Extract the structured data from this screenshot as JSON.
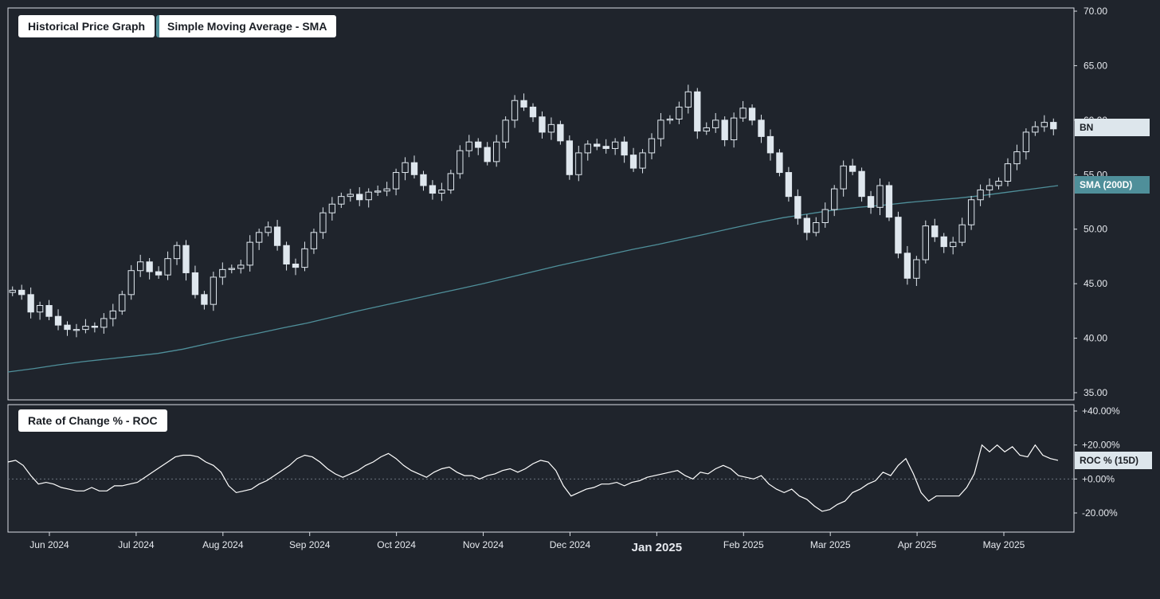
{
  "legend": {
    "price_title": "Historical Price Graph",
    "sma_title": "Simple Moving Average - SMA",
    "roc_title": "Rate of Change % - ROC"
  },
  "tags": {
    "ticker": "BN",
    "sma": "SMA (200D)",
    "roc": "ROC % (15D)"
  },
  "colors": {
    "background": "#1f242c",
    "panel_border": "#d8dde3",
    "candle": "#dfe7ee",
    "sma_line": "#4f8f9a",
    "roc_line": "#ffffff",
    "tag_bg": "#dde6ec",
    "sma_tag_bg": "#4f8f9a"
  },
  "chart_data": [
    {
      "type": "candlestick",
      "y_ticks": [
        "70.00",
        "65.00",
        "60.00",
        "55.00",
        "50.00",
        "45.00",
        "40.00",
        "35.00"
      ],
      "ylim": [
        35,
        70
      ],
      "x_ticks": [
        "Jun 2024",
        "Jul 2024",
        "Aug 2024",
        "Sep 2024",
        "Oct 2024",
        "Nov 2024",
        "Dec 2024",
        "Jan 2025",
        "Feb 2025",
        "Mar 2025",
        "Apr 2025",
        "May 2025"
      ],
      "xlim": [
        0,
        13
      ],
      "x_tick_values": [
        1,
        2,
        3,
        4,
        5,
        6,
        7,
        8,
        9,
        10,
        11,
        12
      ],
      "series": [
        {
          "name": "BN",
          "closes": [
            44.4,
            44.0,
            42.4,
            43.0,
            42.0,
            41.2,
            40.8,
            40.8,
            41.1,
            41.0,
            41.8,
            42.5,
            44.0,
            46.2,
            47.0,
            46.1,
            45.8,
            47.3,
            48.5,
            46.0,
            44.0,
            43.1,
            45.6,
            46.3,
            46.4,
            46.7,
            48.8,
            49.7,
            50.2,
            48.5,
            46.8,
            46.5,
            48.2,
            49.7,
            51.5,
            52.3,
            53.0,
            53.2,
            52.7,
            53.4,
            53.5,
            53.7,
            55.2,
            56.1,
            55.0,
            54.0,
            53.3,
            53.6,
            55.1,
            57.2,
            58.0,
            57.5,
            56.2,
            58.0,
            60.0,
            61.8,
            61.2,
            60.3,
            58.9,
            59.6,
            58.1,
            55.0,
            57.0,
            57.8,
            57.6,
            57.4,
            58.0,
            56.8,
            55.6,
            57.0,
            58.3,
            60.0,
            60.1,
            61.2,
            62.6,
            59.0,
            59.3,
            60.0,
            58.2,
            60.2,
            61.1,
            60.0,
            58.5,
            57.0,
            55.2,
            53.0,
            51.0,
            49.7,
            50.6,
            51.8,
            53.7,
            55.8,
            55.3,
            53.0,
            52.0,
            54.0,
            51.1,
            47.8,
            45.5,
            47.2,
            50.3,
            49.3,
            48.4,
            48.8,
            50.4,
            52.7,
            53.6,
            54.0,
            54.4,
            56.0,
            57.1,
            58.9,
            59.4,
            59.8,
            59.2
          ],
          "sma_200d": [
            36.9,
            37.2,
            37.55,
            37.85,
            38.1,
            38.35,
            38.6,
            39.0,
            39.5,
            40.0,
            40.45,
            40.95,
            41.4,
            41.95,
            42.5,
            43.0,
            43.5,
            44.0,
            44.5,
            45.0,
            45.55,
            46.1,
            46.65,
            47.15,
            47.65,
            48.15,
            48.6,
            49.1,
            49.6,
            50.1,
            50.6,
            51.05,
            51.4,
            51.75,
            52.0,
            52.2,
            52.45,
            52.65,
            52.85,
            53.1,
            53.4,
            53.7,
            54.0
          ],
          "sma_x_range": [
            0,
            13
          ]
        }
      ]
    },
    {
      "type": "line",
      "y_ticks": [
        "+40.00%",
        "+20.00%",
        "+0.00%",
        "-20.00%"
      ],
      "ylim": [
        -30,
        40
      ],
      "series": [
        {
          "name": "ROC % (15D)",
          "values": [
            10,
            11,
            8,
            2,
            -3,
            -2,
            -3,
            -5,
            -6,
            -7,
            -7,
            -5,
            -7,
            -7,
            -4,
            -4,
            -3,
            -2,
            1,
            4,
            7,
            10,
            13,
            14,
            14,
            13,
            10,
            8,
            4,
            -4,
            -8,
            -7,
            -6,
            -3,
            -1,
            2,
            5,
            8,
            12,
            14,
            13,
            10,
            6,
            3,
            1,
            3,
            5,
            8,
            10,
            13,
            15,
            12,
            8,
            5,
            3,
            1,
            4,
            6,
            7,
            4,
            2,
            2,
            0,
            2,
            3,
            5,
            6,
            4,
            6,
            9,
            11,
            10,
            5,
            -4,
            -10,
            -8,
            -6,
            -5,
            -3,
            -3,
            -2,
            -4,
            -2,
            -1,
            1,
            2,
            3,
            4,
            5,
            2,
            0,
            4,
            3,
            6,
            8,
            6,
            2,
            1,
            0,
            2,
            -3,
            -6,
            -8,
            -6,
            -10,
            -12,
            -16,
            -19,
            -18,
            -15,
            -13,
            -8,
            -6,
            -3,
            -1,
            4,
            2,
            8,
            12,
            3,
            -8,
            -13,
            -10,
            -10,
            -10,
            -10,
            -5,
            3,
            20,
            16,
            20,
            16,
            19,
            14,
            13,
            20,
            14,
            12,
            11
          ]
        }
      ]
    }
  ]
}
